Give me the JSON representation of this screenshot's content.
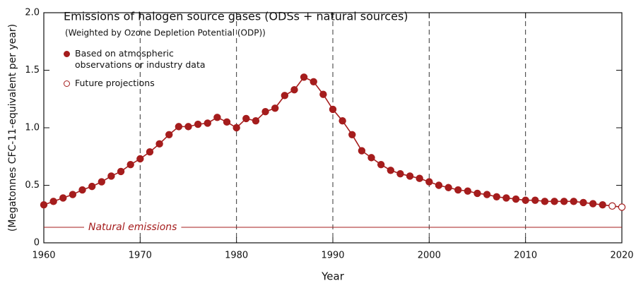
{
  "chart_data": {
    "type": "line",
    "title": "Emissions of halogen source gases (ODSs + natural sources)",
    "subtitle": "(Weighted by Ozone Depletion Potential (ODP))",
    "x_label": "Year",
    "y_label": "(Megatonnes CFC-11-equivalent per year)",
    "xlim": [
      1960,
      2020
    ],
    "xticks": [
      1960,
      1970,
      1980,
      1990,
      2000,
      2010,
      2020
    ],
    "ylim": [
      0,
      2
    ],
    "yticks": [
      0,
      0.5,
      {
        "value": 1,
        "label": "1.0"
      },
      1.5,
      {
        "value": 2,
        "label": "2.0"
      }
    ],
    "grid": "x-dashed",
    "series": [
      {
        "name": "Based on atmospheric observations or industry data",
        "color": "#a51d1d",
        "marker": "filled",
        "x": [
          1960,
          1961,
          1962,
          1963,
          1964,
          1965,
          1966,
          1967,
          1968,
          1969,
          1970,
          1971,
          1972,
          1973,
          1974,
          1975,
          1976,
          1977,
          1978,
          1979,
          1980,
          1981,
          1982,
          1983,
          1984,
          1985,
          1986,
          1987,
          1988,
          1989,
          1990,
          1991,
          1992,
          1993,
          1994,
          1995,
          1996,
          1997,
          1998,
          1999,
          2000,
          2001,
          2002,
          2003,
          2004,
          2005,
          2006,
          2007,
          2008,
          2009,
          2010,
          2011,
          2012,
          2013,
          2014,
          2015,
          2016,
          2017,
          2018
        ],
        "values": [
          0.33,
          0.36,
          0.39,
          0.42,
          0.46,
          0.49,
          0.53,
          0.58,
          0.62,
          0.68,
          0.73,
          0.79,
          0.86,
          0.94,
          1.01,
          1.01,
          1.03,
          1.04,
          1.09,
          1.05,
          1.0,
          1.08,
          1.06,
          1.14,
          1.17,
          1.28,
          1.33,
          1.44,
          1.4,
          1.29,
          1.16,
          1.06,
          0.94,
          0.8,
          0.74,
          0.68,
          0.63,
          0.6,
          0.58,
          0.56,
          0.53,
          0.5,
          0.48,
          0.46,
          0.45,
          0.43,
          0.42,
          0.4,
          0.39,
          0.38,
          0.37,
          0.37,
          0.36,
          0.36,
          0.36,
          0.36,
          0.35,
          0.34,
          0.33
        ]
      },
      {
        "name": "Future projections",
        "color": "#a51d1d",
        "marker": "open",
        "x": [
          2019,
          2020
        ],
        "values": [
          0.32,
          0.31
        ]
      }
    ],
    "reference_line": {
      "label": "Natural emissions",
      "value": 0.135,
      "color": "#a51d1d"
    }
  }
}
